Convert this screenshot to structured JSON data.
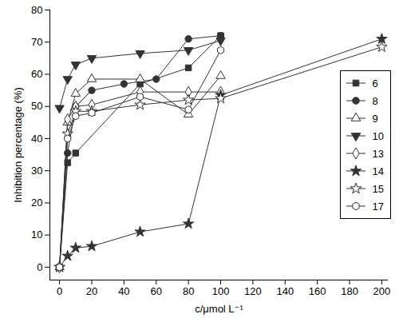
{
  "chart_data": {
    "type": "line",
    "x_label": "c/μmol L⁻¹",
    "y_label": "Inhibition percentage (%)",
    "xlim": [
      -6,
      204
    ],
    "xticks": [
      0,
      20,
      40,
      60,
      80,
      100,
      120,
      140,
      160,
      180,
      200
    ],
    "ylim": [
      -4,
      80
    ],
    "yticks": [
      0,
      10,
      20,
      30,
      40,
      50,
      60,
      70,
      80
    ],
    "legend": "right",
    "series": [
      {
        "name": "6",
        "color": "#333333",
        "marker": "square",
        "x": [
          0,
          5,
          10,
          50,
          80,
          100
        ],
        "values": [
          0,
          32.5,
          35.5,
          57,
          62,
          72
        ]
      },
      {
        "name": "8",
        "color": "#333333",
        "marker": "circle",
        "x": [
          0,
          5,
          10,
          20,
          40,
          60,
          80,
          100
        ],
        "values": [
          0,
          35.5,
          50,
          55,
          57,
          58.5,
          71,
          72
        ]
      },
      {
        "name": "9",
        "color": "#333333",
        "marker": "triangle-open",
        "x": [
          0,
          5,
          10,
          20,
          50,
          80,
          100
        ],
        "values": [
          0,
          45,
          54,
          58.5,
          58.5,
          47.5,
          59.5
        ]
      },
      {
        "name": "10",
        "color": "#333333",
        "marker": "triangle-down",
        "x": [
          0,
          5,
          10,
          20,
          50,
          80,
          100
        ],
        "values": [
          49.5,
          58.5,
          63,
          65,
          66.5,
          67.5,
          70.5
        ]
      },
      {
        "name": "13",
        "color": "#333333",
        "marker": "diamond-open",
        "x": [
          0,
          5,
          10,
          20,
          50,
          80,
          100
        ],
        "values": [
          0,
          46,
          50,
          50.5,
          54.5,
          54.5,
          54.5
        ]
      },
      {
        "name": "14",
        "color": "#333333",
        "marker": "star",
        "x": [
          0,
          5,
          10,
          20,
          50,
          80,
          100,
          200
        ],
        "values": [
          0,
          3.5,
          6,
          6.5,
          11,
          13.5,
          53.5,
          71
        ]
      },
      {
        "name": "15",
        "color": "#333333",
        "marker": "star-open",
        "x": [
          0,
          5,
          10,
          20,
          50,
          80,
          100,
          200
        ],
        "values": [
          0,
          41.5,
          48.5,
          48.5,
          50.5,
          52,
          52.5,
          68.5
        ]
      },
      {
        "name": "17",
        "color": "#333333",
        "marker": "hexagon-open",
        "x": [
          0,
          5,
          10,
          20,
          50,
          80,
          100
        ],
        "values": [
          0,
          40,
          47,
          48,
          53,
          49,
          67.5
        ]
      }
    ]
  }
}
